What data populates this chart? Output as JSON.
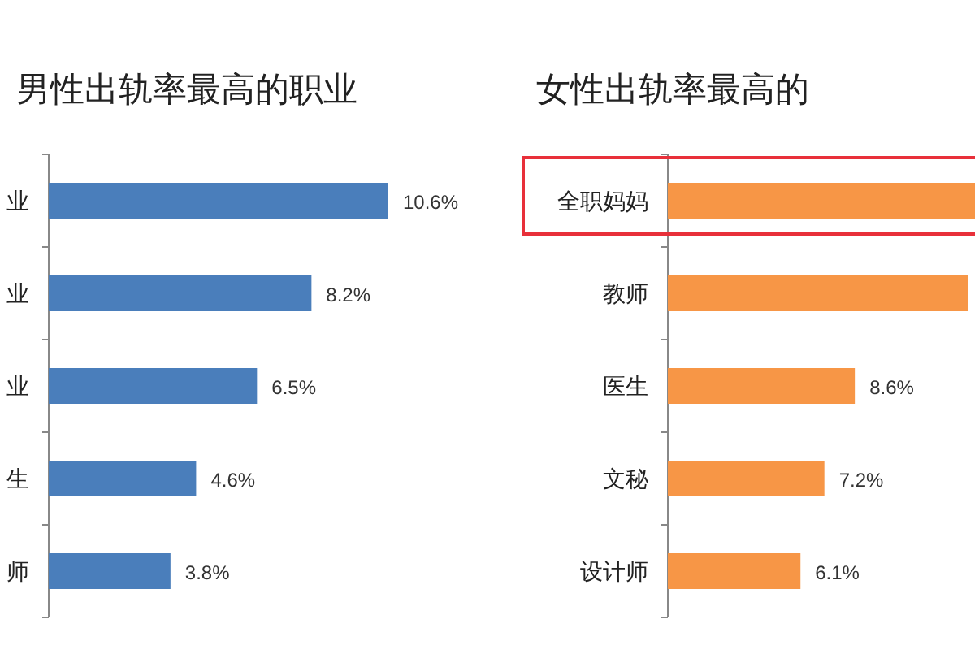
{
  "chart_data": [
    {
      "type": "bar",
      "orientation": "horizontal",
      "title": "男性出轨率最高的职业",
      "categories": [
        "业",
        "业",
        "业",
        "生",
        "师"
      ],
      "values": [
        10.6,
        8.2,
        6.5,
        4.6,
        3.8
      ],
      "color": "#4a7ebb",
      "value_labels": [
        "10.6%",
        "8.2%",
        "6.5%",
        "4.6%",
        "3.8%"
      ]
    },
    {
      "type": "bar",
      "orientation": "horizontal",
      "title": "女性出轨率最高的",
      "categories": [
        "全职妈妈",
        "教师",
        "医生",
        "文秘",
        "设计师"
      ],
      "values": [
        14.2,
        13.8,
        8.6,
        7.2,
        6.1
      ],
      "color": "#f79646",
      "value_labels": [
        null,
        null,
        "8.6%",
        "7.2%",
        "6.1%"
      ]
    }
  ]
}
